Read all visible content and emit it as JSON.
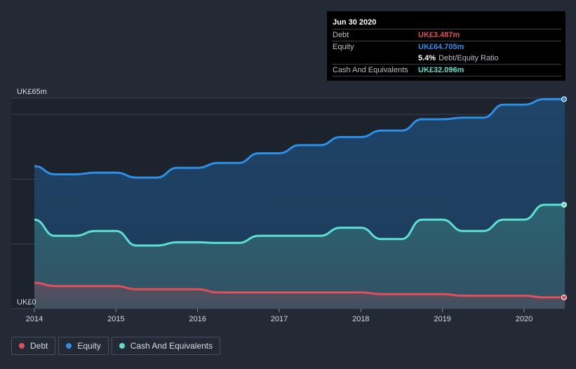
{
  "chart_data": {
    "type": "area",
    "title": "",
    "xlabel": "",
    "ylabel": "",
    "ylim": [
      0,
      65
    ],
    "y_tick_labels": [
      {
        "value": 65,
        "label": "UK£65m"
      },
      {
        "value": 0,
        "label": "UK£0"
      }
    ],
    "x_ticks": [
      {
        "value": 2014,
        "label": "2014"
      },
      {
        "value": 2015,
        "label": "2015"
      },
      {
        "value": 2016,
        "label": "2016"
      },
      {
        "value": 2017,
        "label": "2017"
      },
      {
        "value": 2018,
        "label": "2018"
      },
      {
        "value": 2019,
        "label": "2019"
      },
      {
        "value": 2020,
        "label": "2020"
      }
    ],
    "xlim": [
      2013.7,
      2020.5
    ],
    "x": [
      2014.0,
      2014.25,
      2014.5,
      2014.75,
      2015.0,
      2015.25,
      2015.5,
      2015.75,
      2016.0,
      2016.25,
      2016.5,
      2016.75,
      2017.0,
      2017.25,
      2017.5,
      2017.75,
      2018.0,
      2018.25,
      2018.5,
      2018.75,
      2019.0,
      2019.25,
      2019.5,
      2019.75,
      2020.0,
      2020.25,
      2020.5
    ],
    "series": [
      {
        "name": "Equity",
        "color": "#2e8fe6",
        "values": [
          44.0,
          41.5,
          41.5,
          42.0,
          42.0,
          40.5,
          40.5,
          43.5,
          43.5,
          45.0,
          45.0,
          48.0,
          48.0,
          50.5,
          50.5,
          53.0,
          53.0,
          55.0,
          55.0,
          58.5,
          58.5,
          59.0,
          59.0,
          63.0,
          63.0,
          64.705,
          64.705
        ]
      },
      {
        "name": "Cash And Equivalents",
        "color": "#5ce0d2",
        "values": [
          27.5,
          22.5,
          22.5,
          24.0,
          24.0,
          19.5,
          19.5,
          20.5,
          20.5,
          20.3,
          20.3,
          22.5,
          22.5,
          22.5,
          22.5,
          25.0,
          25.0,
          21.5,
          21.5,
          27.5,
          27.5,
          24.0,
          24.0,
          27.5,
          27.5,
          32.096,
          32.096
        ]
      },
      {
        "name": "Debt",
        "color": "#e0505a",
        "values": [
          8.0,
          7.0,
          7.0,
          7.0,
          7.0,
          6.0,
          6.0,
          6.0,
          6.0,
          5.0,
          5.0,
          5.0,
          5.0,
          5.0,
          5.0,
          5.0,
          5.0,
          4.5,
          4.5,
          4.5,
          4.5,
          4.0,
          4.0,
          4.0,
          4.0,
          3.487,
          3.487
        ]
      }
    ]
  },
  "tooltip": {
    "date": "Jun 30 2020",
    "debt_label": "Debt",
    "debt_value": "UK£3.487m",
    "equity_label": "Equity",
    "equity_value": "UK£64.705m",
    "ratio_value": "5.4%",
    "ratio_label": "Debt/Equity Ratio",
    "cash_label": "Cash And Equivalents",
    "cash_value": "UK£32.096m"
  },
  "legend": {
    "debt": "Debt",
    "equity": "Equity",
    "cash": "Cash And Equivalents"
  },
  "colors": {
    "debt": "#e0505a",
    "equity": "#2e8fe6",
    "cash": "#5ce0d2"
  }
}
